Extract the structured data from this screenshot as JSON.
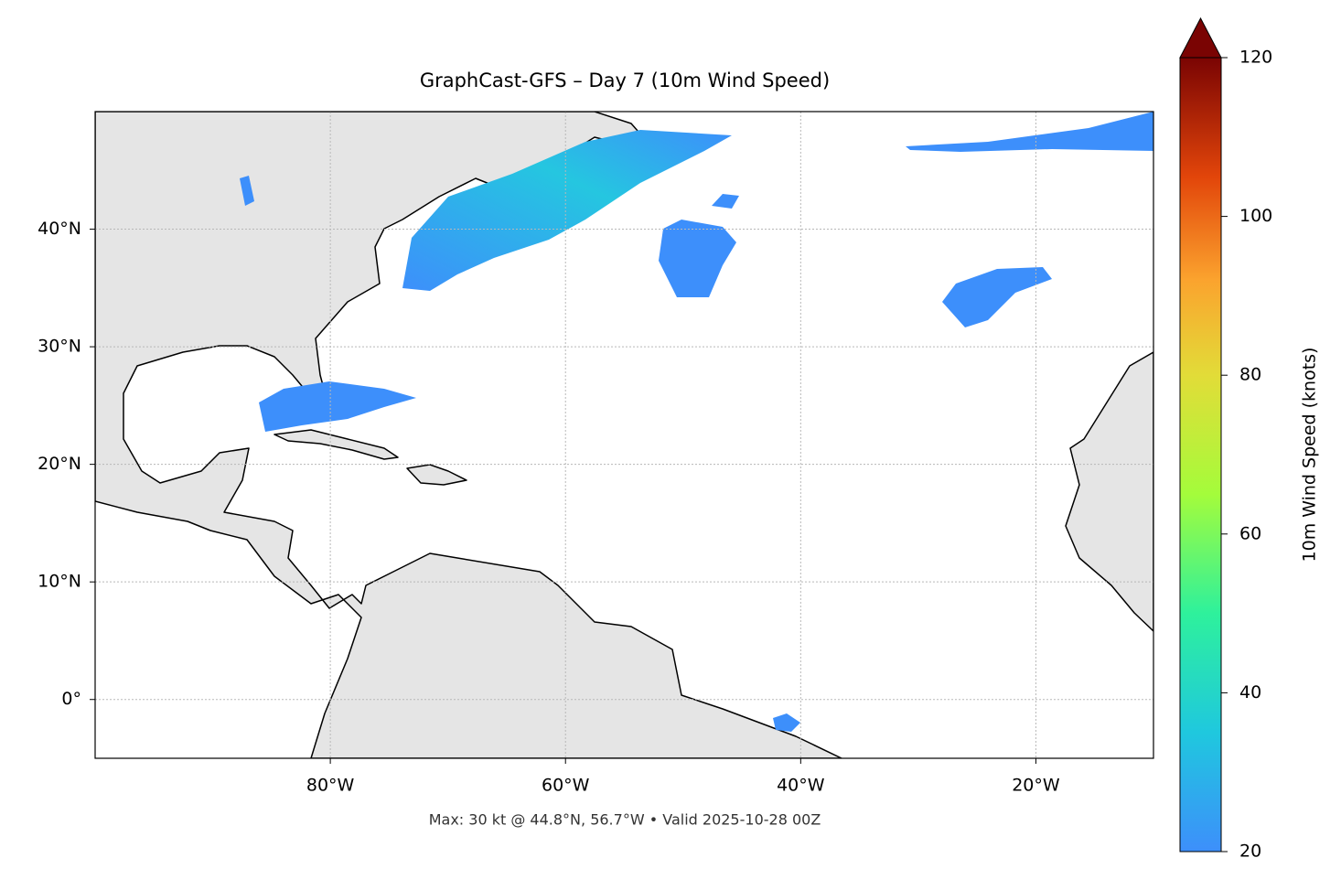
{
  "title": "GraphCast-GFS – Day 7 (10m Wind Speed)",
  "footer": "Max: 30 kt @ 44.8°N, 56.7°W • Valid 2025-10-28 00Z",
  "map": {
    "xlim": [
      -100,
      -10
    ],
    "ylim": [
      -5,
      50
    ],
    "xticks": [
      {
        "value": -80,
        "label": "80°W"
      },
      {
        "value": -60,
        "label": "60°W"
      },
      {
        "value": -40,
        "label": "40°W"
      },
      {
        "value": -20,
        "label": "20°W"
      }
    ],
    "yticks": [
      {
        "value": 0,
        "label": "0°"
      },
      {
        "value": 10,
        "label": "10°N"
      },
      {
        "value": 20,
        "label": "20°N"
      },
      {
        "value": 30,
        "label": "30°N"
      },
      {
        "value": 40,
        "label": "40°N"
      }
    ],
    "grid": true
  },
  "colorbar": {
    "label": "10m Wind Speed (knots)",
    "lim": [
      20,
      120
    ],
    "ticks": [
      20,
      40,
      60,
      80,
      100,
      120
    ]
  }
}
